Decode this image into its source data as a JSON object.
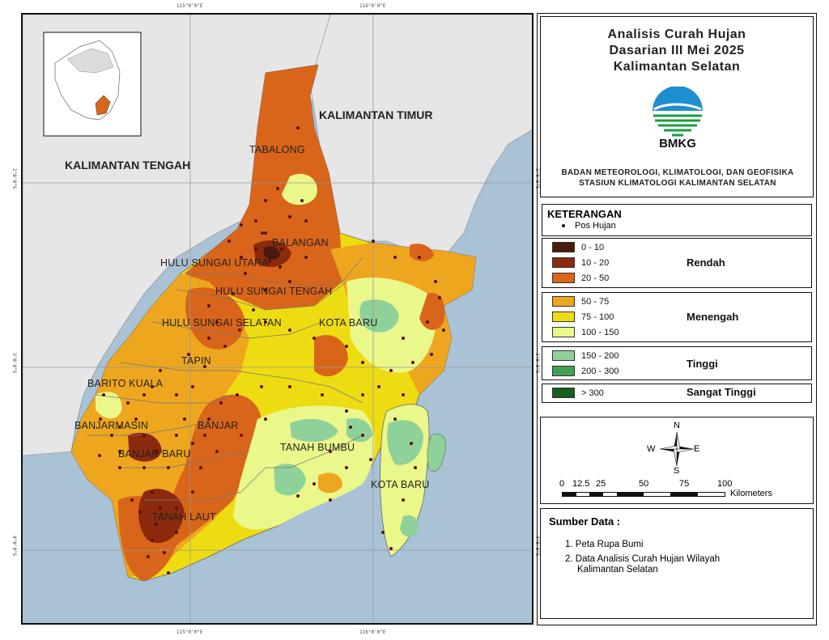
{
  "map": {
    "title_lines": [
      "Analisis Curah Hujan",
      "Dasarian III Mei 2025",
      "Kalimantan Selatan"
    ],
    "logo_text": "BMKG",
    "agency_lines": [
      "BADAN METEOROLOGI, KLIMATOLOGI, DAN GEOFISIKA",
      "STASIUN KLIMATOLOGI KALIMANTAN SELATAN"
    ],
    "coords": {
      "top": [
        "115°0'0\"E",
        "116°0'0\"E"
      ],
      "bottom": [
        "115°0'0\"E",
        "116°0'0\"E"
      ],
      "left": [
        "2°0'0\"S",
        "3°0'0\"S",
        "4°0'0\"S"
      ],
      "right": [
        "2°0'0\"S",
        "3°0'0\"S",
        "4°0'0\"S"
      ]
    },
    "region_labels": {
      "kalteng": "KALIMANTAN TENGAH",
      "kaltim": "KALIMANTAN TIMUR",
      "tabalong": "TABALONG",
      "balangan": "BALANGAN",
      "hsu": "HULU SUNGAI UTARA",
      "hst": "HULU SUNGAI TENGAH",
      "hss": "HULU SUNGAI SELATAN",
      "kotabaru1": "KOTA BARU",
      "tapin": "TAPIN",
      "baritokuala": "BARITO KUALA",
      "banjarmasin": "BANJARMASIN",
      "banjar": "BANJAR",
      "banjarbaru": "BANJAR BARU",
      "tanahbumbu": "TANAH BUMBU",
      "kotabaru2": "KOTA BARU",
      "tanahlaut": "TANAH LAUT"
    }
  },
  "legend": {
    "title": "KETERANGAN",
    "pos_label": "Pos Hujan",
    "items": [
      {
        "range": "0 - 10",
        "color": "#4a1a0c"
      },
      {
        "range": "10 - 20",
        "color": "#8b2a0c"
      },
      {
        "range": "20 - 50",
        "color": "#d9651a"
      },
      {
        "range": "50 - 75",
        "color": "#eda61e"
      },
      {
        "range": "75 - 100",
        "color": "#eedc12"
      },
      {
        "range": "100 - 150",
        "color": "#eaf78a"
      },
      {
        "range": "150 - 200",
        "color": "#8fd19a"
      },
      {
        "range": "200 - 300",
        "color": "#41a352"
      },
      {
        "range": "> 300",
        "color": "#125f1e"
      }
    ],
    "classes": {
      "rendah": "Rendah",
      "menengah": "Menengah",
      "tinggi": "Tinggi",
      "sangat_tinggi": "Sangat Tinggi"
    }
  },
  "compass": {
    "n": "N",
    "s": "S",
    "e": "E",
    "w": "W"
  },
  "scale": {
    "ticks": [
      "0",
      "12.5",
      "25",
      "50",
      "75",
      "100"
    ],
    "unit": "Kilometers"
  },
  "source": {
    "title": "Sumber Data :",
    "items": [
      "1. Peta Rupa Bumi",
      "2. Data Analisis Curah Hujan Wilayah",
      "Kalimantan Selatan"
    ]
  }
}
